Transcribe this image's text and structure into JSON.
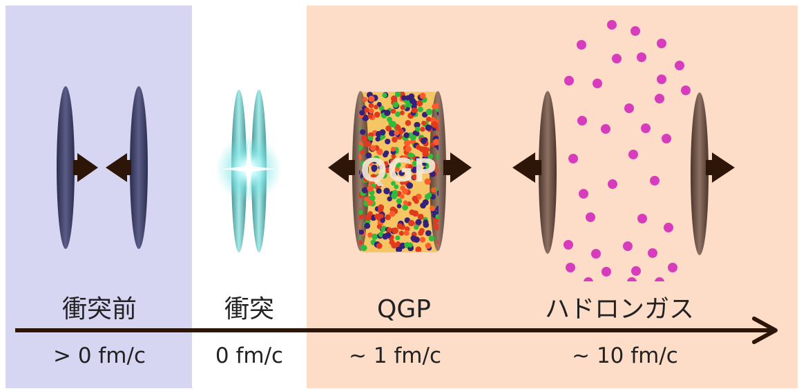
{
  "colors": {
    "before_bg": "#d6d5f2",
    "after_bg": "#fddcc8",
    "nucleus_dark": "#42446a",
    "nucleus_brown": "#6f5548",
    "arrow": "#2d1608",
    "qgp_fill": "#f6c564",
    "hadron": "#d63cbc",
    "glow": "#7fe7e6"
  },
  "qgp_particle_colors": [
    "#e03b1e",
    "#2fbb3b",
    "#35217a",
    "#e03b1e",
    "#2fbb3b",
    "#35217a",
    "#ff5a2b"
  ],
  "stages": [
    {
      "label": "衝突前",
      "time": "> 0 fm/c"
    },
    {
      "label": "衝突",
      "time": "0 fm/c"
    },
    {
      "label": "QGP",
      "time": "~ 1 fm/c"
    },
    {
      "label": "ハドロンガス",
      "time": "~ 10 fm/c"
    }
  ],
  "qgp_overlay_text": "QGP"
}
